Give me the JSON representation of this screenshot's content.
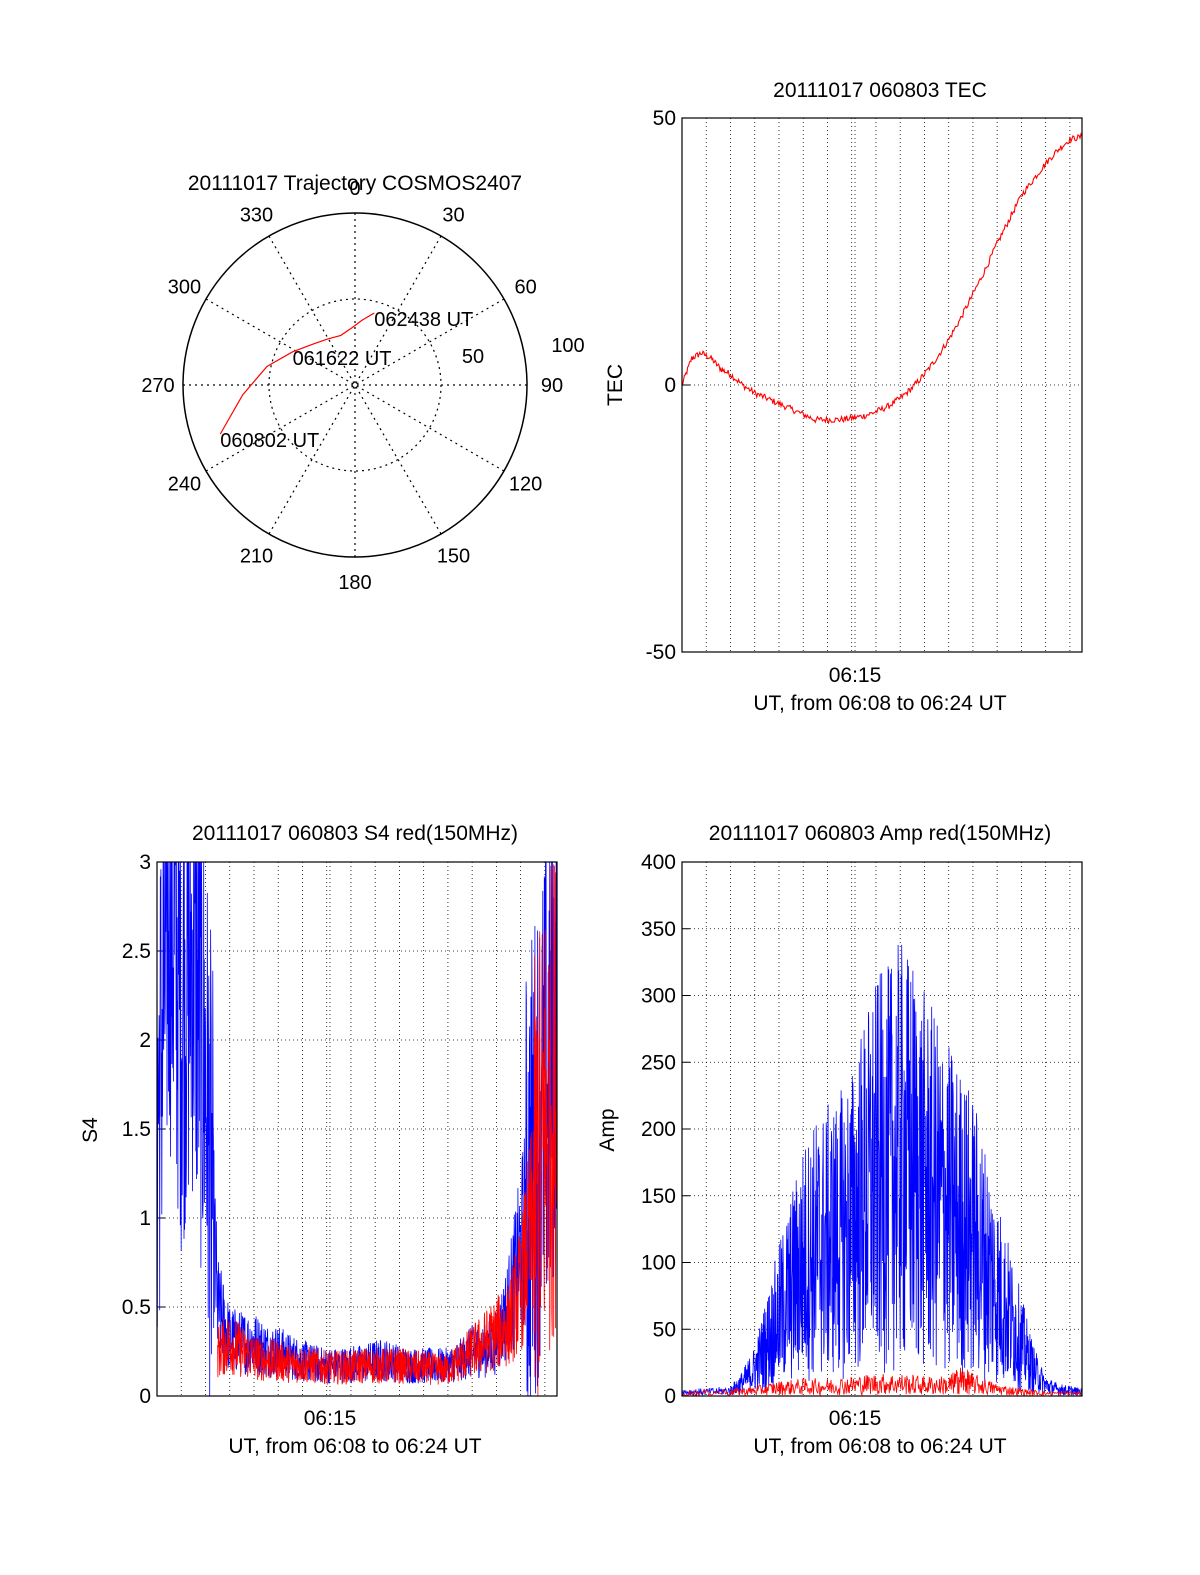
{
  "colors": {
    "red": "#ff0000",
    "blue": "#0000ff",
    "axis": "#000000"
  },
  "chart_data": [
    {
      "type": "polar",
      "title": "20111017 Trajectory COSMOS2407",
      "angle_labels": [
        "0",
        "30",
        "60",
        "90",
        "120",
        "150",
        "180",
        "210",
        "240",
        "270",
        "300",
        "330"
      ],
      "radius_labels": [
        "50",
        "100"
      ],
      "trajectory": {
        "color": "red",
        "points": [
          {
            "az": 250,
            "el": 15
          },
          {
            "az": 265,
            "el": 31
          },
          {
            "az": 282,
            "el": 43
          },
          {
            "az": 298,
            "el": 53
          },
          {
            "az": 313,
            "el": 59
          },
          {
            "az": 329,
            "el": 62
          },
          {
            "az": 344,
            "el": 63
          },
          {
            "az": 357,
            "el": 60
          },
          {
            "az": 6,
            "el": 56
          },
          {
            "az": 15,
            "el": 51
          }
        ],
        "annotations": [
          {
            "text": "060802 UT",
            "az": 250,
            "el": 15
          },
          {
            "text": "061622 UT",
            "az": 298,
            "el": 53
          },
          {
            "text": "062438 UT",
            "az": 15,
            "el": 51
          }
        ]
      }
    },
    {
      "type": "line",
      "title": "20111017 060803 TEC",
      "xlabel": "UT, from 06:08 to 06:24 UT",
      "ylabel": "TEC",
      "xtick_label": "06:15",
      "yticks": [
        "50",
        "0",
        "-50"
      ],
      "xlim": [
        0,
        16.5
      ],
      "ylim": [
        -50,
        50
      ],
      "series": [
        {
          "color": "red",
          "x": [
            0,
            0.4,
            0.8,
            1.2,
            1.6,
            2.0,
            2.5,
            3.0,
            3.5,
            4.0,
            4.5,
            5.0,
            5.5,
            6.0,
            6.5,
            7.0,
            7.5,
            8.0,
            8.5,
            9.0,
            9.5,
            10.0,
            10.5,
            11.0,
            11.5,
            12.0,
            12.5,
            13.0,
            13.5,
            14.0,
            14.5,
            15.0,
            15.5,
            16.0,
            16.5
          ],
          "y": [
            0,
            5,
            6,
            5,
            3,
            2,
            0,
            -1.5,
            -2.5,
            -3.5,
            -4.5,
            -5.5,
            -6.5,
            -6.5,
            -6.5,
            -6.2,
            -5.8,
            -5,
            -4,
            -2.5,
            -0.5,
            2,
            5,
            8.5,
            12.5,
            17,
            21.5,
            26.5,
            31,
            35.5,
            38.5,
            41.5,
            44,
            46,
            46.5
          ]
        }
      ]
    },
    {
      "type": "line",
      "title": "20111017 060803 S4 red(150MHz)",
      "xlabel": "UT, from 06:08 to 06:24 UT",
      "ylabel": "S4",
      "xtick_label": "06:15",
      "yticks": [
        "0",
        "0.5",
        "1",
        "1.5",
        "2",
        "2.5",
        "3"
      ],
      "xlim": [
        0,
        16.5
      ],
      "ylim": [
        0,
        3
      ],
      "series": [
        {
          "color": "blue",
          "x": [
            0,
            0.5,
            1.0,
            1.5,
            2.0,
            2.5,
            3.0,
            3.5,
            4.0,
            4.5,
            5.0,
            5.5,
            6.0,
            6.5,
            7.0,
            7.5,
            8.0,
            8.5,
            9.0,
            9.5,
            10.0,
            10.5,
            11.0,
            11.5,
            12.0,
            12.5,
            13.0,
            13.5,
            14.0,
            14.5,
            15.0,
            15.5,
            16.0,
            16.5
          ],
          "y": [
            1.5,
            2.8,
            2.2,
            2.5,
            1.8,
            0.5,
            0.32,
            0.3,
            0.3,
            0.26,
            0.25,
            0.22,
            0.2,
            0.18,
            0.17,
            0.17,
            0.18,
            0.18,
            0.2,
            0.2,
            0.18,
            0.17,
            0.17,
            0.17,
            0.17,
            0.2,
            0.25,
            0.25,
            0.3,
            0.5,
            0.8,
            1.3,
            1.7,
            2.1
          ]
        },
        {
          "color": "red",
          "x": [
            2.5,
            3.0,
            3.5,
            4.0,
            4.5,
            5.0,
            5.5,
            6.0,
            6.5,
            7.0,
            7.5,
            8.0,
            8.5,
            9.0,
            9.5,
            10.0,
            10.5,
            11.0,
            11.5,
            12.0,
            12.5,
            13.0,
            13.5,
            14.0,
            14.5,
            15.0,
            15.5,
            16.0,
            16.5
          ],
          "y": [
            0.25,
            0.3,
            0.25,
            0.22,
            0.2,
            0.2,
            0.18,
            0.18,
            0.17,
            0.16,
            0.16,
            0.16,
            0.17,
            0.17,
            0.17,
            0.17,
            0.16,
            0.16,
            0.15,
            0.15,
            0.2,
            0.25,
            0.3,
            0.35,
            0.4,
            0.6,
            1.0,
            1.5,
            1.8
          ]
        }
      ]
    },
    {
      "type": "line",
      "title": "20111017 060803 Amp red(150MHz)",
      "xlabel": "UT, from 06:08 to 06:24 UT",
      "ylabel": "Amp",
      "xtick_label": "06:15",
      "yticks": [
        "0",
        "50",
        "100",
        "150",
        "200",
        "250",
        "300",
        "350",
        "400"
      ],
      "xlim": [
        0,
        16.5
      ],
      "ylim": [
        0,
        400
      ],
      "series": [
        {
          "color": "blue",
          "x": [
            0,
            1,
            2,
            2.5,
            3,
            3.5,
            4,
            4.5,
            5,
            5.5,
            6,
            6.5,
            7,
            7.5,
            8,
            8.5,
            9,
            9.5,
            10,
            10.5,
            11,
            11.5,
            12,
            12.5,
            13,
            13.5,
            14,
            14.5,
            15,
            15.5,
            16,
            16.5
          ],
          "y": [
            3,
            3,
            4,
            10,
            20,
            40,
            60,
            80,
            100,
            110,
            115,
            120,
            130,
            150,
            165,
            170,
            180,
            175,
            160,
            150,
            140,
            130,
            120,
            100,
            80,
            60,
            40,
            20,
            8,
            5,
            4,
            3
          ]
        },
        {
          "color": "red",
          "x": [
            0,
            2,
            3,
            4,
            5,
            6,
            7,
            8,
            9,
            10,
            11,
            11.5,
            12,
            13,
            14,
            15,
            16.5
          ],
          "y": [
            2,
            3,
            4,
            6,
            7,
            7,
            8,
            9,
            9,
            8,
            8,
            12,
            9,
            5,
            3,
            2,
            2
          ]
        }
      ]
    }
  ]
}
